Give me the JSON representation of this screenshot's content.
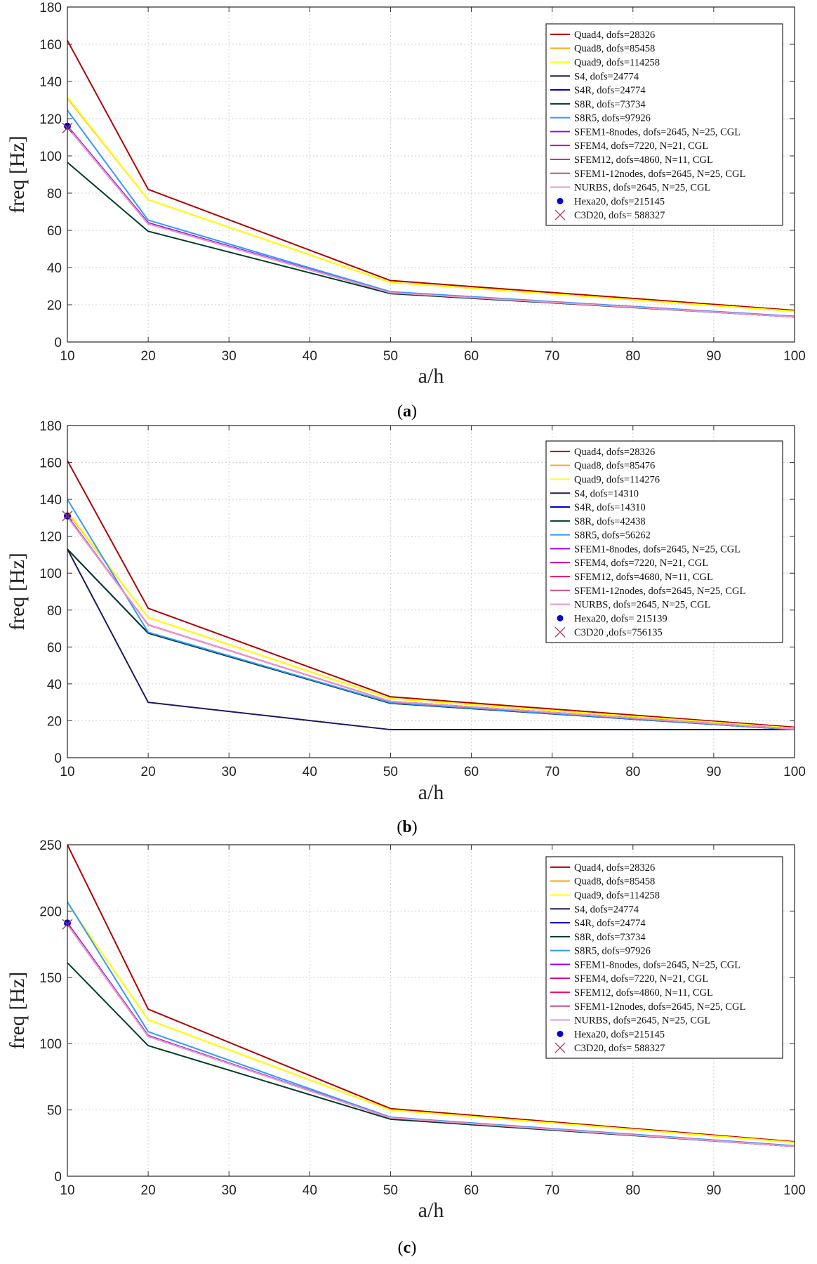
{
  "chart_data": [
    {
      "type": "line",
      "caption": "a",
      "xlabel": "a/h",
      "ylabel": "freq [Hz]",
      "xlim": [
        10,
        100
      ],
      "ylim": [
        0,
        180
      ],
      "xticks": [
        "10",
        "20",
        "30",
        "40",
        "50",
        "60",
        "70",
        "80",
        "90",
        "100"
      ],
      "yticks": [
        "0",
        "20",
        "40",
        "60",
        "80",
        "100",
        "120",
        "140",
        "160",
        "180"
      ],
      "x": [
        10,
        20,
        50,
        100
      ],
      "series": [
        {
          "name": "Quad4, dofs=28326",
          "color": "#b00000",
          "values": [
            162,
            82,
            33,
            17
          ]
        },
        {
          "name": "Quad8, dofs=85458",
          "color": "#ffa500",
          "values": [
            131,
            76.5,
            32,
            16.5
          ]
        },
        {
          "name": "Quad9, dofs=114258",
          "color": "#ffff00",
          "values": [
            131.5,
            76.5,
            32,
            16.5
          ]
        },
        {
          "name": "S4, dofs=24774",
          "color": "#1a1a5e",
          "values": [
            116,
            64,
            26.5,
            13.5
          ]
        },
        {
          "name": "S4R, dofs=24774",
          "color": "#0000cd",
          "values": [
            116,
            64,
            26.5,
            13.5
          ]
        },
        {
          "name": "S8R, dofs=73734",
          "color": "#003d26",
          "values": [
            96.5,
            59.5,
            26,
            13.5
          ]
        },
        {
          "name": "S8R5, dofs=97926",
          "color": "#3399ff",
          "values": [
            124.5,
            65.5,
            27,
            13.8
          ]
        },
        {
          "name": "SFEM1-8nodes, dofs=2645, N=25, CGL",
          "color": "#9900ff",
          "values": [
            116,
            64,
            26.5,
            13.5
          ]
        },
        {
          "name": "SFEM4, dofs=7220, N=21, CGL",
          "color": "#cc0099",
          "values": [
            115.5,
            63.5,
            26.5,
            13.5
          ]
        },
        {
          "name": "SFEM12, dofs=4860, N=11, CGL",
          "color": "#ff0066",
          "values": [
            115.5,
            63.5,
            26.5,
            13.5
          ]
        },
        {
          "name": "SFEM1-12nodes, dofs=2645, N=25, CGL",
          "color": "#cc4d80",
          "values": [
            115.5,
            63.5,
            26.5,
            13.5
          ]
        },
        {
          "name": "NURBS, dofs=2645, N=25, CGL",
          "color": "#e699cc",
          "values": [
            115.5,
            63.5,
            26.5,
            13.5
          ]
        }
      ],
      "markers": [
        {
          "name": "Hexa20, dofs=215145",
          "symbol": "dot",
          "color": "#0000cc",
          "x": 10,
          "y": 116
        },
        {
          "name": "C3D20, dofs= 588327",
          "symbol": "cross",
          "color": "#b04060",
          "x": 10,
          "y": 115
        }
      ],
      "legend": "top-right"
    },
    {
      "type": "line",
      "caption": "b",
      "xlabel": "a/h",
      "ylabel": "freq [Hz]",
      "xlim": [
        10,
        100
      ],
      "ylim": [
        0,
        180
      ],
      "xticks": [
        "10",
        "20",
        "30",
        "40",
        "50",
        "60",
        "70",
        "80",
        "90",
        "100"
      ],
      "yticks": [
        "0",
        "20",
        "40",
        "60",
        "80",
        "100",
        "120",
        "140",
        "160",
        "180"
      ],
      "x": [
        10,
        20,
        50,
        100
      ],
      "series": [
        {
          "name": "Quad4, dofs=28326",
          "color": "#b00000",
          "values": [
            161,
            81,
            33,
            16.5
          ]
        },
        {
          "name": "Quad8, dofs=85476",
          "color": "#ffa500",
          "values": [
            133,
            76,
            32,
            16
          ]
        },
        {
          "name": "Quad9, dofs=114276",
          "color": "#ffff00",
          "values": [
            133.5,
            76,
            32,
            16
          ]
        },
        {
          "name": "S4, dofs=14310",
          "color": "#1a1a5e",
          "values": [
            113,
            30,
            15.2,
            15.2
          ]
        },
        {
          "name": "S4R, dofs=14310",
          "color": "#0000cd",
          "values": [
            113,
            67.5,
            29.5,
            15.2
          ]
        },
        {
          "name": "S8R, dofs=42438",
          "color": "#003d26",
          "values": [
            113,
            67.5,
            29.5,
            15.2
          ]
        },
        {
          "name": "S8R5, dofs=56262",
          "color": "#3399ff",
          "values": [
            140,
            68,
            29.8,
            15.2
          ]
        },
        {
          "name": "SFEM1-8nodes, dofs=2645, N=25, CGL",
          "color": "#9900ff",
          "values": [
            131,
            72,
            30.5,
            15.5
          ]
        },
        {
          "name": "SFEM4, dofs=7220, N=21, CGL",
          "color": "#cc0099",
          "values": [
            130.5,
            72,
            30.5,
            15.5
          ]
        },
        {
          "name": "SFEM12, dofs=4680, N=11, CGL",
          "color": "#ff0066",
          "values": [
            130.5,
            72,
            30.5,
            15.5
          ]
        },
        {
          "name": "SFEM1-12nodes, dofs=2645, N=25, CGL",
          "color": "#cc4d80",
          "values": [
            130.5,
            72,
            30.5,
            15.5
          ]
        },
        {
          "name": "NURBS, dofs=2645, N=25, CGL",
          "color": "#e699cc",
          "values": [
            130.5,
            72,
            30.5,
            15.5
          ]
        }
      ],
      "markers": [
        {
          "name": "Hexa20, dofs= 215139",
          "symbol": "dot",
          "color": "#0000cc",
          "x": 10,
          "y": 131
        },
        {
          "name": "C3D20 ,dofs=756135",
          "symbol": "cross",
          "color": "#b04060",
          "x": 10,
          "y": 131
        }
      ],
      "legend": "top-right"
    },
    {
      "type": "line",
      "caption": "c",
      "xlabel": "a/h",
      "ylabel": "freq [Hz]",
      "xlim": [
        10,
        100
      ],
      "ylim": [
        0,
        250
      ],
      "xticks": [
        "10",
        "20",
        "30",
        "40",
        "50",
        "60",
        "70",
        "80",
        "90",
        "100"
      ],
      "yticks": [
        "0",
        "50",
        "100",
        "150",
        "200",
        "250"
      ],
      "x": [
        10,
        20,
        50,
        100
      ],
      "series": [
        {
          "name": "Quad4, dofs=28326",
          "color": "#b00000",
          "values": [
            250,
            126,
            51,
            26
          ]
        },
        {
          "name": "Quad8, dofs=85458",
          "color": "#ffa500",
          "values": [
            206,
            118,
            50,
            25.5
          ]
        },
        {
          "name": "Quad9, dofs=114258",
          "color": "#ffff00",
          "values": [
            206,
            118,
            50,
            25.5
          ]
        },
        {
          "name": "S4, dofs=24774",
          "color": "#1a1a5e",
          "values": [
            191,
            106,
            44,
            22.5
          ]
        },
        {
          "name": "S4R, dofs=24774",
          "color": "#0000cd",
          "values": [
            191,
            106,
            44,
            22.5
          ]
        },
        {
          "name": "S8R, dofs=73734",
          "color": "#003d26",
          "values": [
            161,
            98.5,
            43,
            22.5
          ]
        },
        {
          "name": "S8R5, dofs=97926",
          "color": "#3399ff",
          "values": [
            207,
            109,
            44.5,
            23
          ]
        },
        {
          "name": "SFEM1-8nodes, dofs=2645, N=25, CGL",
          "color": "#9900ff",
          "values": [
            191,
            106,
            44,
            22.5
          ]
        },
        {
          "name": "SFEM4, dofs=7220, N=21, CGL",
          "color": "#cc0099",
          "values": [
            190,
            105.5,
            44,
            22.5
          ]
        },
        {
          "name": "SFEM12, dofs=4860, N=11, CGL",
          "color": "#ff0066",
          "values": [
            190,
            105.5,
            44,
            22.5
          ]
        },
        {
          "name": "SFEM1-12nodes, dofs=2645, N=25, CGL",
          "color": "#cc4d80",
          "values": [
            190,
            105.5,
            44,
            22.5
          ]
        },
        {
          "name": "NURBS, dofs=2645, N=25, CGL",
          "color": "#e699cc",
          "values": [
            190,
            105.5,
            44,
            22.5
          ]
        }
      ],
      "markers": [
        {
          "name": "Hexa20, dofs=215145",
          "symbol": "dot",
          "color": "#0000cc",
          "x": 10,
          "y": 191
        },
        {
          "name": "C3D20, dofs= 588327",
          "symbol": "cross",
          "color": "#b04060",
          "x": 10,
          "y": 190
        }
      ],
      "legend": "top-right"
    }
  ]
}
